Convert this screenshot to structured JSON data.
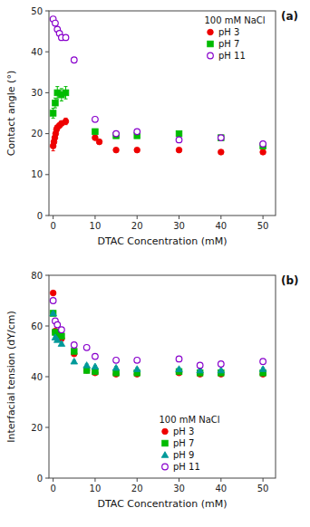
{
  "chart_data": [
    {
      "type": "scatter",
      "title": "(a)",
      "x_label": "DTAC Concentration (mM)",
      "y_label": "Contact angle (°)",
      "xlim": [
        -1,
        53
      ],
      "xticks": [
        0,
        10,
        20,
        30,
        40,
        50
      ],
      "ylim": [
        0,
        50
      ],
      "yticks": [
        0,
        10,
        20,
        30,
        40,
        50
      ],
      "legend": "upper right",
      "legend_title": "100 mM NaCl",
      "series": [
        {
          "name": "pH 3",
          "color": "#ee0000",
          "marker": "circle",
          "x": [
            0.0,
            0.2,
            0.4,
            0.6,
            0.8,
            1.0,
            1.5,
            2.0,
            3.0,
            10.0,
            11.0,
            15.0,
            20.0,
            30.0,
            40.0,
            50.0
          ],
          "values": [
            17.0,
            18.0,
            19.0,
            20.0,
            21.0,
            21.5,
            22.0,
            22.5,
            23.0,
            19.0,
            18.0,
            16.0,
            16.0,
            16.0,
            15.5,
            15.5
          ],
          "errors": [
            1.2,
            0.5,
            0.5,
            0.5,
            0.5,
            0.5,
            0.5,
            0.5,
            0.8,
            0.5,
            0.5,
            0.5,
            0.5,
            0.5,
            0.5,
            0.5
          ]
        },
        {
          "name": "pH 7",
          "color": "#00bb00",
          "marker": "square",
          "x": [
            0.0,
            0.5,
            1.0,
            2.0,
            3.0,
            10.0,
            15.0,
            20.0,
            30.0,
            40.0,
            50.0
          ],
          "values": [
            25.0,
            27.5,
            30.0,
            29.5,
            30.0,
            20.5,
            19.5,
            19.5,
            20.0,
            19.0,
            17.0
          ],
          "errors": [
            1.2,
            1.2,
            1.5,
            1.5,
            1.5,
            0.5,
            0.5,
            0.5,
            0.5,
            0.5,
            0.5
          ]
        },
        {
          "name": "pH 11",
          "color": "#8800cc",
          "marker": "open-circle",
          "x": [
            0.0,
            0.5,
            1.0,
            1.5,
            2.0,
            3.0,
            5.0,
            10.0,
            15.0,
            20.0,
            30.0,
            40.0,
            50.0
          ],
          "values": [
            48.0,
            47.0,
            45.5,
            44.5,
            43.5,
            43.5,
            38.0,
            23.5,
            20.0,
            20.5,
            18.5,
            19.0,
            17.5
          ],
          "errors": [
            0.5,
            0.5,
            0.5,
            0.5,
            0.5,
            0.5,
            0.5,
            0.5,
            0.5,
            0.5,
            0.5,
            0.5,
            0.5
          ]
        }
      ]
    },
    {
      "type": "scatter",
      "title": "(b)",
      "x_label": "DTAC Concentration (mM)",
      "y_label": "Interfacial tension (dY/cm)",
      "xlim": [
        -1,
        53
      ],
      "xticks": [
        0,
        10,
        20,
        30,
        40,
        50
      ],
      "ylim": [
        0,
        80
      ],
      "yticks": [
        0,
        20,
        40,
        60,
        80
      ],
      "legend": "lower center",
      "legend_title": "100 mM NaCl",
      "series": [
        {
          "name": "pH 3",
          "color": "#ee0000",
          "marker": "circle",
          "x": [
            0.0,
            0.5,
            1.0,
            2.0,
            5.0,
            8.0,
            10.0,
            15.0,
            20.0,
            30.0,
            35.0,
            40.0,
            50.0
          ],
          "values": [
            73.0,
            58.0,
            56.0,
            55.0,
            49.0,
            42.5,
            41.5,
            41.0,
            41.0,
            41.5,
            41.0,
            41.0,
            41.0
          ],
          "errors": [
            0.5,
            0.5,
            0.5,
            0.5,
            0.5,
            0.5,
            0.5,
            0.5,
            0.5,
            0.5,
            0.5,
            0.5,
            0.5
          ]
        },
        {
          "name": "pH 7",
          "color": "#00bb00",
          "marker": "square",
          "x": [
            0.0,
            0.5,
            1.0,
            2.0,
            5.0,
            8.0,
            10.0,
            15.0,
            20.0,
            30.0,
            35.0,
            40.0,
            50.0
          ],
          "values": [
            65.0,
            57.5,
            57.0,
            56.0,
            50.0,
            42.5,
            42.0,
            41.5,
            41.5,
            42.0,
            41.5,
            41.5,
            41.5
          ],
          "errors": [
            0.5,
            0.5,
            0.5,
            0.5,
            0.5,
            0.5,
            0.5,
            0.5,
            0.5,
            0.5,
            0.5,
            0.5,
            0.5
          ]
        },
        {
          "name": "pH 9",
          "color": "#009999",
          "marker": "triangle",
          "x": [
            0.0,
            0.5,
            1.0,
            2.0,
            5.0,
            8.0,
            10.0,
            15.0,
            20.0,
            30.0,
            35.0,
            40.0,
            50.0
          ],
          "values": [
            65.0,
            55.5,
            54.5,
            53.0,
            46.0,
            44.5,
            44.0,
            43.5,
            43.0,
            43.0,
            42.5,
            42.5,
            43.0
          ],
          "errors": [
            0.5,
            0.5,
            0.5,
            0.5,
            0.5,
            0.5,
            0.5,
            0.5,
            0.5,
            0.5,
            0.5,
            0.5,
            0.5
          ]
        },
        {
          "name": "pH 11",
          "color": "#8800cc",
          "marker": "open-circle",
          "x": [
            0.0,
            0.5,
            1.0,
            2.0,
            5.0,
            8.0,
            10.0,
            15.0,
            20.0,
            30.0,
            35.0,
            40.0,
            50.0
          ],
          "values": [
            70.0,
            62.0,
            60.5,
            58.5,
            52.5,
            51.5,
            48.0,
            46.5,
            46.5,
            47.0,
            44.5,
            45.0,
            46.0
          ],
          "errors": [
            0.5,
            0.5,
            0.5,
            0.5,
            0.5,
            0.5,
            0.5,
            0.5,
            0.5,
            0.5,
            0.5,
            0.5,
            0.5
          ]
        }
      ]
    }
  ]
}
